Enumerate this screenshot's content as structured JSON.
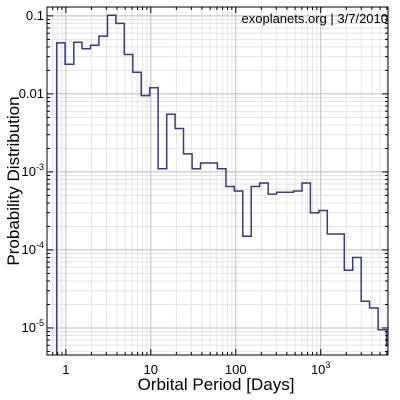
{
  "chart_data": {
    "type": "bar",
    "annotation": "exoplanets.org | 3/7/2010",
    "xlabel": "Orbital Period [Days]",
    "ylabel": "Probability Distribution",
    "xscale": "log",
    "yscale": "log",
    "xlim": [
      0.6,
      6200
    ],
    "ylim": [
      4.5e-06,
      0.13
    ],
    "grid": true,
    "line_color": "#3a3a7a",
    "x_ticks": [
      {
        "value": 1,
        "base": "1",
        "exp": ""
      },
      {
        "value": 10,
        "base": "10",
        "exp": ""
      },
      {
        "value": 100,
        "base": "100",
        "exp": ""
      },
      {
        "value": 1000,
        "base": "10",
        "exp": "3"
      }
    ],
    "y_ticks": [
      {
        "value": 0.1,
        "base": "0.1",
        "exp": ""
      },
      {
        "value": 0.01,
        "base": "0.01",
        "exp": ""
      },
      {
        "value": 0.001,
        "base": "10",
        "exp": "-3"
      },
      {
        "value": 0.0001,
        "base": "10",
        "exp": "-4"
      },
      {
        "value": 1e-05,
        "base": "10",
        "exp": "-5"
      }
    ],
    "bin_edges": [
      0.78,
      0.98,
      1.24,
      1.55,
      1.95,
      2.45,
      3.09,
      3.88,
      4.88,
      6.14,
      7.72,
      9.71,
      12.2,
      15.4,
      19.3,
      24.3,
      30.6,
      38.5,
      48.4,
      60.8,
      76.5,
      96.2,
      121,
      152,
      191,
      241,
      303,
      381,
      479,
      602,
      757,
      952,
      1197,
      1506,
      1894,
      2382,
      2996,
      3768,
      4738,
      5960
    ],
    "values": [
      0.045,
      0.024,
      0.046,
      0.038,
      0.042,
      0.055,
      0.102,
      0.08,
      0.032,
      0.019,
      0.0095,
      0.012,
      0.0011,
      0.0055,
      0.0036,
      0.0017,
      0.0011,
      0.0013,
      0.0013,
      0.0011,
      0.00065,
      0.00057,
      0.00015,
      0.00065,
      0.00072,
      0.00052,
      0.00055,
      0.00055,
      0.00057,
      0.00072,
      0.0003,
      0.00032,
      0.00016,
      0.00016,
      5.5e-05,
      8e-05,
      2.2e-05,
      1.8e-05,
      9.5e-06,
      5.8e-06
    ]
  }
}
